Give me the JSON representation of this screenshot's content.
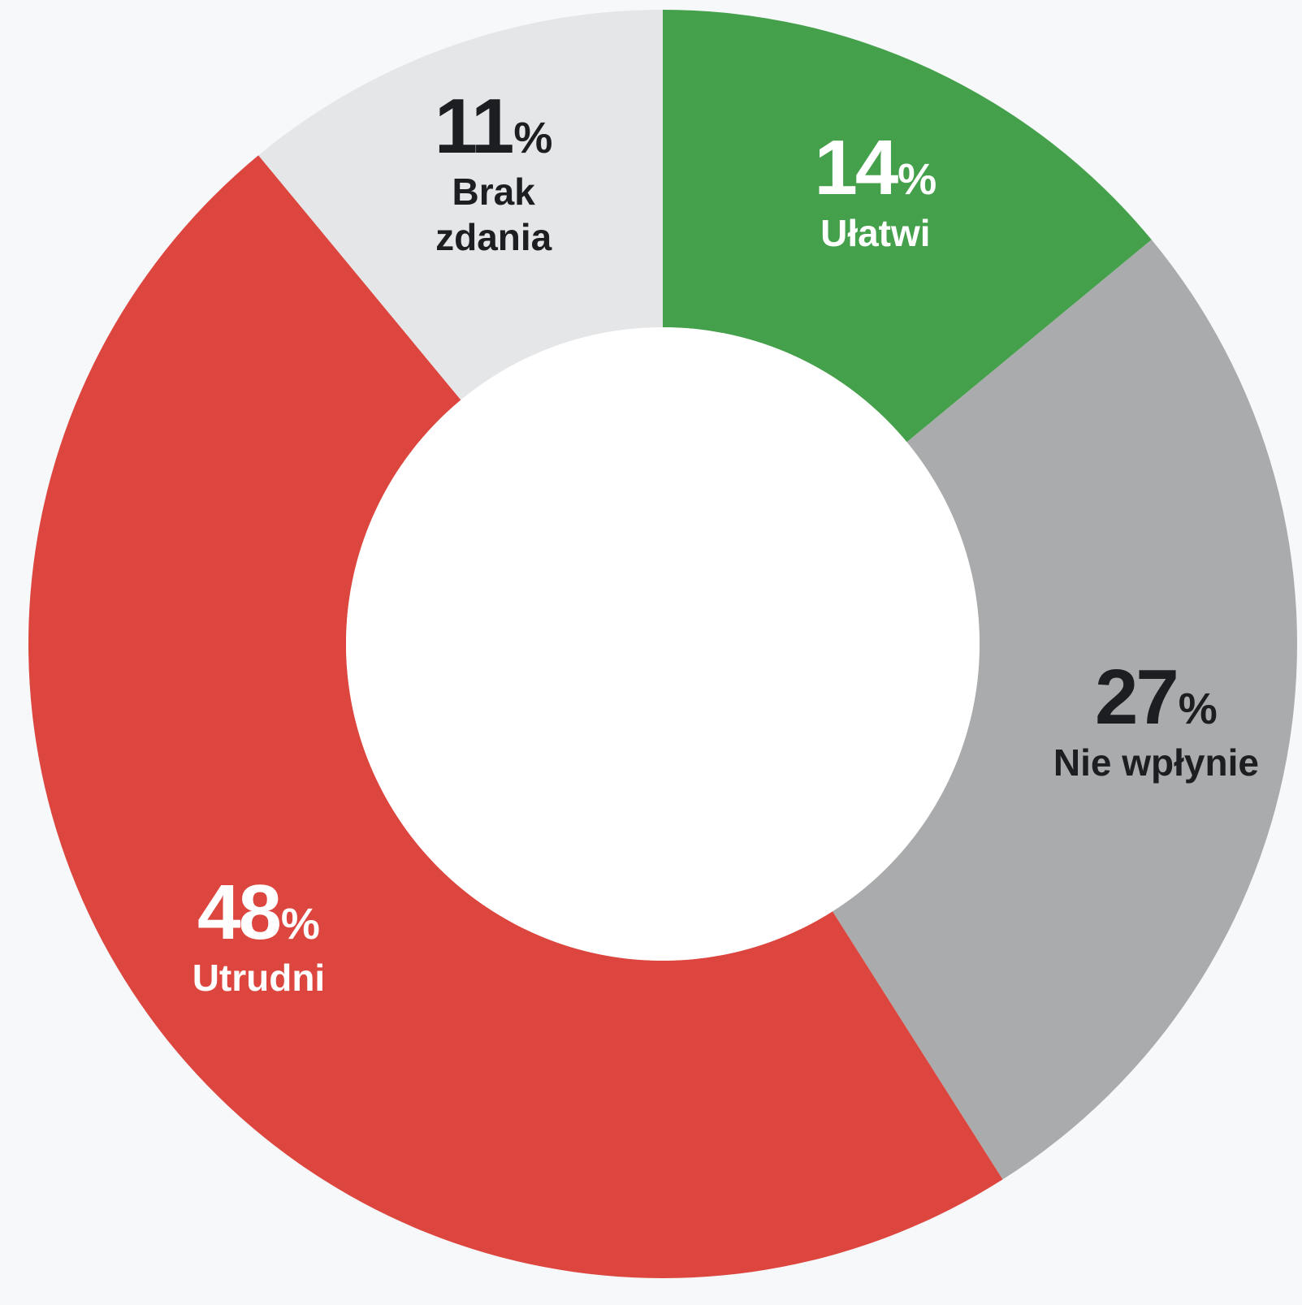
{
  "chart_data": {
    "type": "pie",
    "variant": "donut",
    "start": "top, clockwise",
    "slices": [
      {
        "label": "Ułatwi",
        "value": 14,
        "value_text": "14",
        "unit": "%",
        "color": "#44a04a",
        "text_color": "#ffffff"
      },
      {
        "label": "Nie wpłynie",
        "value": 27,
        "value_text": "27",
        "unit": "%",
        "color": "#aaabac",
        "text_color": "#1c1e21"
      },
      {
        "label": "Utrudni",
        "value": 48,
        "value_text": "48",
        "unit": "%",
        "color": "#dd463e",
        "text_color": "#ffffff"
      },
      {
        "label": "Brak zdania",
        "value": 11,
        "value_text": "11",
        "unit": "%",
        "color": "#e5e6e8",
        "text_color": "#1c1e21"
      }
    ]
  },
  "colors": {
    "background": "#f7f8fa",
    "hole": "#ffffff"
  }
}
